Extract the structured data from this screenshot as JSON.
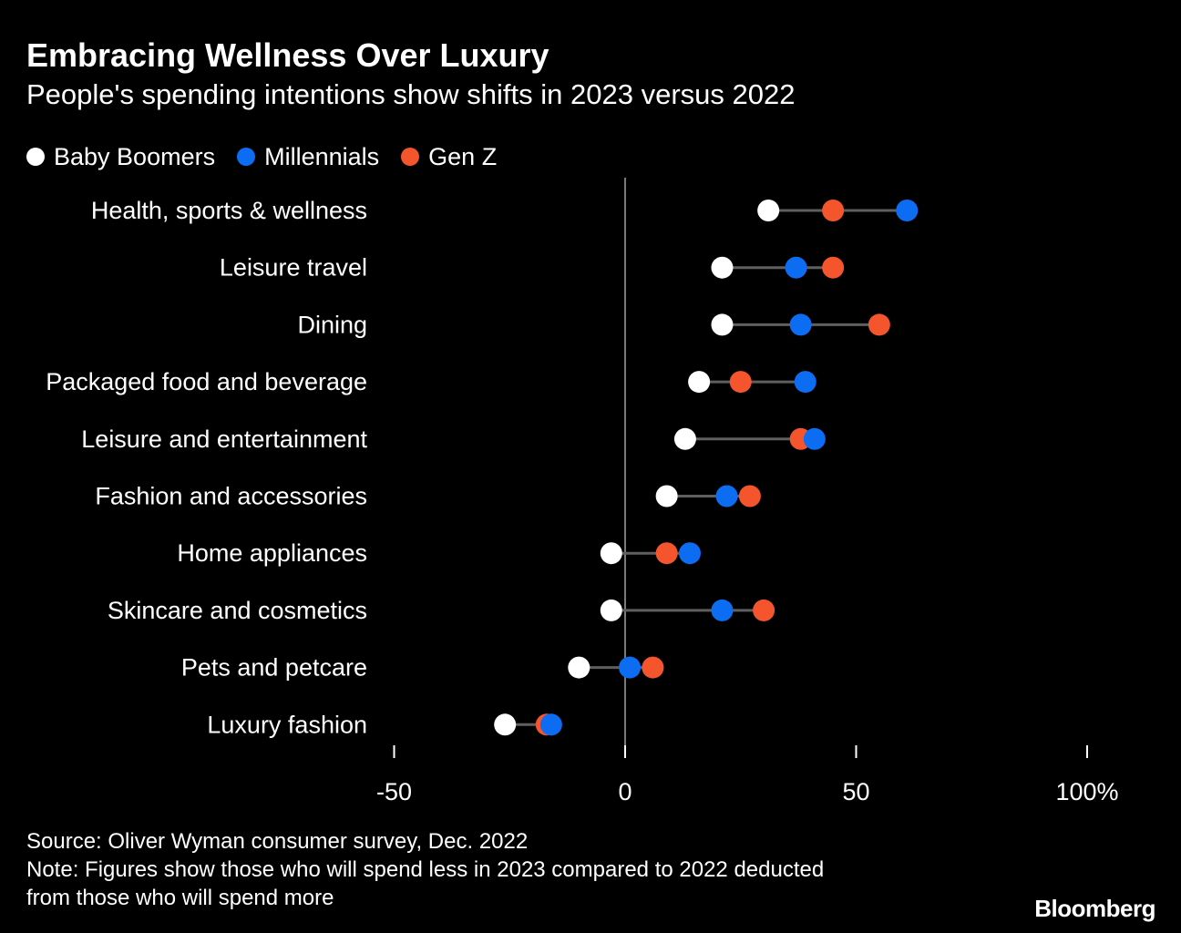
{
  "title": "Embracing Wellness Over Luxury",
  "subtitle": "People's spending intentions show shifts in 2023 versus 2022",
  "legend": [
    {
      "name": "Baby Boomers",
      "color": "#ffffff"
    },
    {
      "name": "Millennials",
      "color": "#0c6cf2"
    },
    {
      "name": "Gen Z",
      "color": "#f4552d"
    }
  ],
  "source": "Source: Oliver Wyman consumer survey, Dec. 2022",
  "note_line1": "Note: Figures show those who will spend less in 2023 compared to 2022 deducted",
  "note_line2": "from those who will spend more",
  "brand": "Bloomberg",
  "chart_data": {
    "type": "scatter",
    "subtype": "dot-range",
    "categories": [
      "Health, sports & wellness",
      "Leisure travel",
      "Dining",
      "Packaged food and beverage",
      "Leisure and entertainment",
      "Fashion and accessories",
      "Home appliances",
      "Skincare and cosmetics",
      "Pets and petcare",
      "Luxury fashion"
    ],
    "series": [
      {
        "name": "Baby Boomers",
        "color": "#ffffff",
        "values": [
          31,
          21,
          21,
          16,
          13,
          9,
          -3,
          -3,
          -10,
          -26
        ]
      },
      {
        "name": "Gen Z",
        "color": "#f4552d",
        "values": [
          45,
          45,
          55,
          25,
          38,
          27,
          9,
          30,
          6,
          -17
        ]
      },
      {
        "name": "Millennials",
        "color": "#0c6cf2",
        "values": [
          61,
          37,
          38,
          39,
          41,
          22,
          14,
          21,
          1,
          -16
        ]
      }
    ],
    "xlim": [
      -50,
      100
    ],
    "xticks": [
      -50,
      0,
      50,
      100
    ],
    "xtick_labels": [
      "-50",
      "0",
      "50",
      "100%"
    ],
    "grid": false,
    "legend_position": "top-left"
  }
}
